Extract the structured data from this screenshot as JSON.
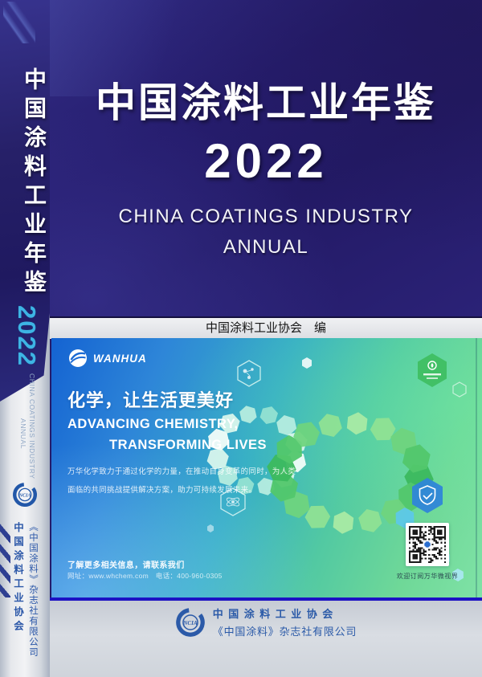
{
  "spine": {
    "title": "中国涂料工业年鉴",
    "year": "2022",
    "subtitle_en_line1": "CHINA COATINGS INDUSTRY",
    "subtitle_en_line2": "ANNUAL",
    "logo_text": "NCIA",
    "association": "中国涂料工业协会",
    "publisher": "《中国涂料》杂志社有限公司"
  },
  "front": {
    "title": "中国涂料工业年鉴",
    "year": "2022",
    "subtitle_line1": "CHINA COATINGS INDUSTRY",
    "subtitle_line2": "ANNUAL",
    "editor_credit": "中国涂料工业协会　编"
  },
  "ad_banner": {
    "brand": "WANHUA",
    "slogan_cn": "化学，让生活更美好",
    "slogan_en_line1": "ADVANCING CHEMISTRY,",
    "slogan_en_line2": "TRANSFORMING LIVES",
    "body_line1": "万华化学致力于通过化学的力量，在推动自身变革的同时，为人类",
    "body_line2": "面临的共同挑战提供解决方案，助力可持续发展未来。",
    "contact_heading": "了解更多相关信息，请联系我们",
    "contact_details": "网址：www.whchem.com　电话：400-960-0305",
    "qr_caption": "欢迎订阅万华微视界"
  },
  "footer": {
    "logo_text": "NCIA",
    "association": "中国涂料工业协会",
    "publisher": "《中国涂料》杂志社有限公司"
  },
  "colors": {
    "cover_navy": "#241b6a",
    "spine_year_blue": "#3db4e4",
    "ad_blue": "#1463d2",
    "ad_green": "#7fe2a6",
    "footer_text_blue": "#2b5aa8",
    "bottom_rule_blue": "#1c12c4"
  }
}
